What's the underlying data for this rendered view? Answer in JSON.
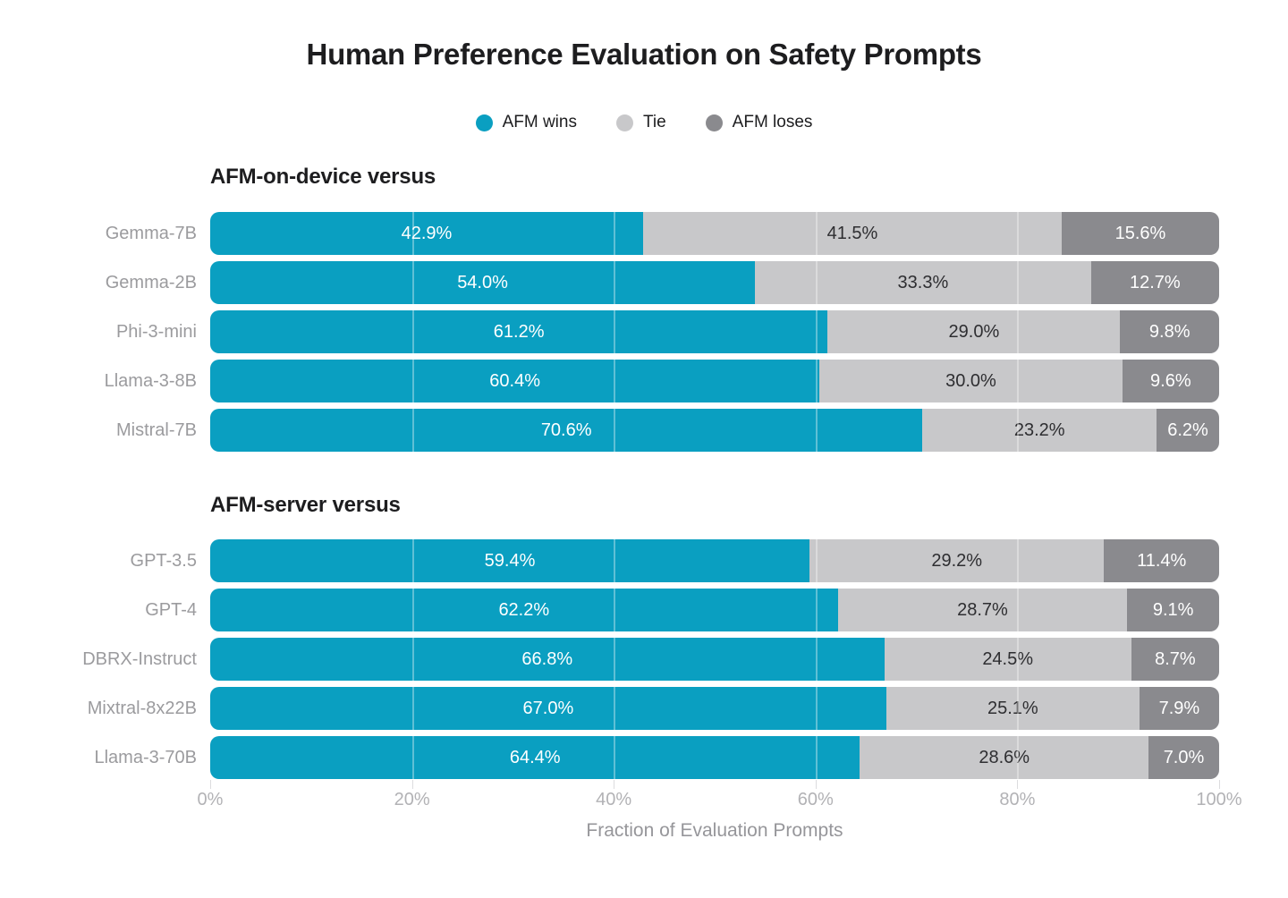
{
  "title": "Human Preference Evaluation on Safety Prompts",
  "legend": [
    {
      "label": "AFM wins",
      "color": "#0a9fc1"
    },
    {
      "label": "Tie",
      "color": "#c8c8ca"
    },
    {
      "label": "AFM loses",
      "color": "#8a8a8e"
    }
  ],
  "colors": {
    "afm_wins": "#0a9fc1",
    "tie": "#c8c8ca",
    "afm_loses": "#8a8a8e",
    "title_text": "#1d1d1f",
    "category_label": "#9b9b9e",
    "axis_label": "#b2b2b5",
    "axis_title_text": "#96969a"
  },
  "chart_data": {
    "type": "bar",
    "stacked": true,
    "orientation": "horizontal",
    "title": "Human Preference Evaluation on Safety Prompts",
    "xlabel": "Fraction of Evaluation Prompts",
    "xlim": [
      0,
      100
    ],
    "x_ticks": [
      "0%",
      "20%",
      "40%",
      "60%",
      "80%",
      "100%"
    ],
    "grid": true,
    "legend_position": "top-center",
    "series_names": [
      "AFM wins",
      "Tie",
      "AFM loses"
    ],
    "groups": [
      {
        "header": "AFM-on-device versus",
        "rows": [
          {
            "label": "Gemma-7B",
            "values": [
              42.9,
              41.5,
              15.6
            ]
          },
          {
            "label": "Gemma-2B",
            "values": [
              54.0,
              33.3,
              12.7
            ]
          },
          {
            "label": "Phi-3-mini",
            "values": [
              61.2,
              29.0,
              9.8
            ]
          },
          {
            "label": "Llama-3-8B",
            "values": [
              60.4,
              30.0,
              9.6
            ]
          },
          {
            "label": "Mistral-7B",
            "values": [
              70.6,
              23.2,
              6.2
            ]
          }
        ]
      },
      {
        "header": "AFM-server versus",
        "rows": [
          {
            "label": "GPT-3.5",
            "values": [
              59.4,
              29.2,
              11.4
            ]
          },
          {
            "label": "GPT-4",
            "values": [
              62.2,
              28.7,
              9.1
            ]
          },
          {
            "label": "DBRX-Instruct",
            "values": [
              66.8,
              24.5,
              8.7
            ]
          },
          {
            "label": "Mixtral-8x22B",
            "values": [
              67.0,
              25.1,
              7.9
            ]
          },
          {
            "label": "Llama-3-70B",
            "values": [
              64.4,
              28.6,
              7.0
            ]
          }
        ]
      }
    ]
  }
}
